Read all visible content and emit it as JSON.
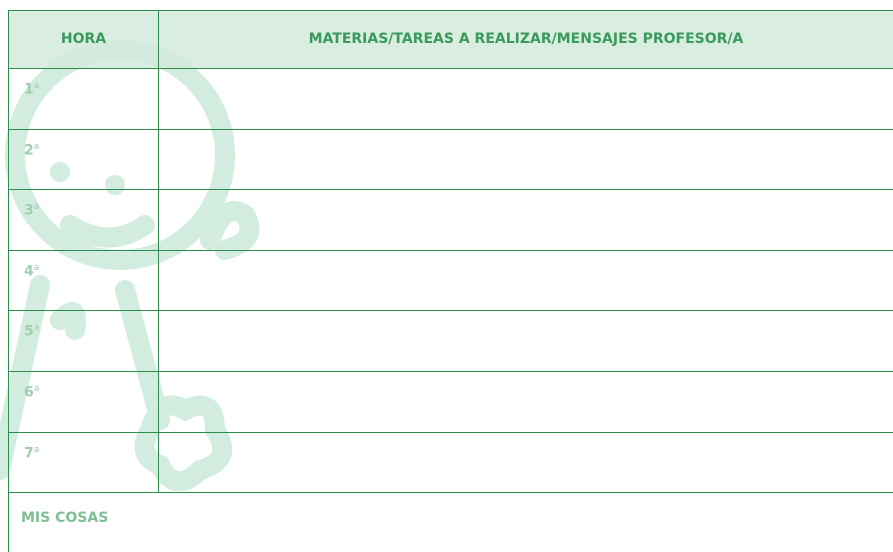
{
  "table": {
    "header": [
      "HORA",
      "MATERIAS/TAREAS A REALIZAR/MENSAJES PROFESOR/A"
    ],
    "rows": [
      {
        "number": "1",
        "suffix": "a"
      },
      {
        "number": "2",
        "suffix": "a"
      },
      {
        "number": "3",
        "suffix": "a"
      },
      {
        "number": "4",
        "suffix": "a"
      },
      {
        "number": "5",
        "suffix": "a"
      },
      {
        "number": "6",
        "suffix": "a"
      },
      {
        "number": "7",
        "suffix": "a"
      }
    ]
  },
  "footer": {
    "label": "MIS COSAS"
  }
}
